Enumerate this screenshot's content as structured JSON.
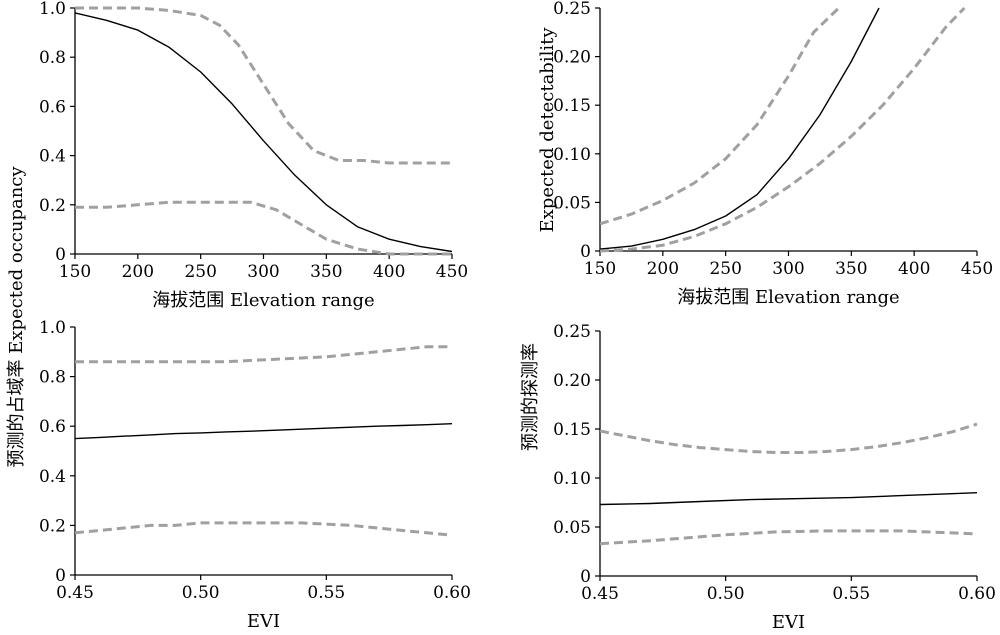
{
  "chart_data": [
    {
      "id": "occ-elev",
      "type": "line",
      "xlabel": "海拔范围 Elevation range",
      "ylabel": "",
      "xlim": [
        150,
        450
      ],
      "ylim": [
        0,
        1.0
      ],
      "xticks": [
        150,
        200,
        250,
        300,
        350,
        400,
        450
      ],
      "yticks": [
        0,
        0.2,
        0.4,
        0.6,
        0.8,
        1.0
      ],
      "xtick_labels": [
        "150",
        "200",
        "250",
        "300",
        "350",
        "400",
        "450"
      ],
      "ytick_labels": [
        "0",
        "0.2",
        "0.4",
        "0.6",
        "0.8",
        "1.0"
      ],
      "grid": false,
      "series": [
        {
          "style": "solid",
          "color": "#000000",
          "x": [
            150,
            175,
            200,
            225,
            250,
            275,
            300,
            325,
            350,
            375,
            400,
            425,
            450
          ],
          "y": [
            0.98,
            0.95,
            0.91,
            0.84,
            0.74,
            0.61,
            0.46,
            0.32,
            0.2,
            0.11,
            0.06,
            0.03,
            0.01
          ]
        },
        {
          "style": "dashed",
          "color": "#a0a0a0",
          "x": [
            150,
            175,
            200,
            225,
            250,
            265,
            280,
            300,
            320,
            340,
            360,
            380,
            400,
            420,
            430,
            450
          ],
          "y": [
            1.0,
            1.0,
            1.0,
            0.99,
            0.97,
            0.93,
            0.85,
            0.69,
            0.53,
            0.42,
            0.38,
            0.38,
            0.37,
            0.37,
            0.37,
            0.37
          ]
        },
        {
          "style": "dashed",
          "color": "#a0a0a0",
          "x": [
            150,
            175,
            200,
            225,
            250,
            275,
            290,
            310,
            330,
            350,
            375,
            400,
            425,
            450
          ],
          "y": [
            0.19,
            0.19,
            0.2,
            0.21,
            0.21,
            0.21,
            0.21,
            0.18,
            0.12,
            0.06,
            0.02,
            0.0,
            0.0,
            0.0
          ]
        }
      ]
    },
    {
      "id": "det-elev",
      "type": "line",
      "xlabel": "海拔范围 Elevation range",
      "ylabel": "Expected detectability",
      "xlim": [
        150,
        450
      ],
      "ylim": [
        0,
        0.25
      ],
      "xticks": [
        150,
        200,
        250,
        300,
        350,
        400,
        450
      ],
      "yticks": [
        0,
        0.05,
        0.1,
        0.15,
        0.2,
        0.25
      ],
      "xtick_labels": [
        "150",
        "200",
        "250",
        "300",
        "350",
        "400",
        "450"
      ],
      "ytick_labels": [
        "0",
        "0.05",
        "0.10",
        "0.15",
        "0.20",
        "0.25"
      ],
      "grid": false,
      "series": [
        {
          "style": "solid",
          "color": "#000000",
          "x": [
            150,
            175,
            200,
            225,
            250,
            275,
            300,
            325,
            350,
            372
          ],
          "y": [
            0.002,
            0.005,
            0.012,
            0.022,
            0.036,
            0.058,
            0.095,
            0.14,
            0.195,
            0.25
          ]
        },
        {
          "style": "dashed",
          "color": "#a0a0a0",
          "x": [
            150,
            175,
            200,
            225,
            250,
            275,
            300,
            320,
            340
          ],
          "y": [
            0.028,
            0.038,
            0.052,
            0.07,
            0.095,
            0.13,
            0.18,
            0.225,
            0.25
          ]
        },
        {
          "style": "dashed",
          "color": "#a0a0a0",
          "x": [
            150,
            175,
            200,
            225,
            250,
            275,
            300,
            325,
            350,
            375,
            400,
            425,
            440
          ],
          "y": [
            0.0,
            0.002,
            0.006,
            0.015,
            0.028,
            0.045,
            0.066,
            0.09,
            0.118,
            0.15,
            0.188,
            0.23,
            0.25
          ]
        }
      ]
    },
    {
      "id": "occ-evi",
      "type": "line",
      "xlabel": "EVI",
      "ylabel": "",
      "xlim": [
        0.45,
        0.6
      ],
      "ylim": [
        0,
        1.0
      ],
      "xticks": [
        0.45,
        0.5,
        0.55,
        0.6
      ],
      "yticks": [
        0,
        0.2,
        0.4,
        0.6,
        0.8,
        1.0
      ],
      "xtick_labels": [
        "0.45",
        "0.50",
        "0.55",
        "0.60"
      ],
      "ytick_labels": [
        "0",
        "0.2",
        "0.4",
        "0.6",
        "0.8",
        "1.0"
      ],
      "grid": false,
      "series": [
        {
          "style": "solid",
          "color": "#000000",
          "x": [
            0.45,
            0.46,
            0.47,
            0.48,
            0.49,
            0.5,
            0.51,
            0.52,
            0.53,
            0.54,
            0.55,
            0.56,
            0.57,
            0.58,
            0.59,
            0.6
          ],
          "y": [
            0.55,
            0.555,
            0.56,
            0.565,
            0.57,
            0.573,
            0.577,
            0.58,
            0.584,
            0.588,
            0.592,
            0.596,
            0.6,
            0.603,
            0.606,
            0.61
          ]
        },
        {
          "style": "dashed",
          "color": "#a0a0a0",
          "x": [
            0.45,
            0.47,
            0.49,
            0.51,
            0.53,
            0.55,
            0.56,
            0.57,
            0.58,
            0.59,
            0.6
          ],
          "y": [
            0.86,
            0.86,
            0.86,
            0.86,
            0.87,
            0.88,
            0.89,
            0.9,
            0.91,
            0.92,
            0.92
          ]
        },
        {
          "style": "dashed",
          "color": "#a0a0a0",
          "x": [
            0.45,
            0.46,
            0.47,
            0.48,
            0.49,
            0.5,
            0.52,
            0.54,
            0.56,
            0.57,
            0.58,
            0.59,
            0.6
          ],
          "y": [
            0.17,
            0.18,
            0.19,
            0.2,
            0.2,
            0.21,
            0.21,
            0.21,
            0.2,
            0.19,
            0.18,
            0.17,
            0.16
          ]
        }
      ]
    },
    {
      "id": "det-evi",
      "type": "line",
      "xlabel": "EVI",
      "ylabel": "预测的探测率",
      "xlim": [
        0.45,
        0.6
      ],
      "ylim": [
        0,
        0.25
      ],
      "xticks": [
        0.45,
        0.5,
        0.55,
        0.6
      ],
      "yticks": [
        0,
        0.05,
        0.1,
        0.15,
        0.2,
        0.25
      ],
      "xtick_labels": [
        "0.45",
        "0.50",
        "0.55",
        "0.60"
      ],
      "ytick_labels": [
        "0",
        "0.05",
        "0.10",
        "0.15",
        "0.20",
        "0.25"
      ],
      "grid": false,
      "series": [
        {
          "style": "solid",
          "color": "#000000",
          "x": [
            0.45,
            0.47,
            0.49,
            0.51,
            0.53,
            0.55,
            0.57,
            0.59,
            0.6
          ],
          "y": [
            0.073,
            0.074,
            0.076,
            0.078,
            0.079,
            0.08,
            0.082,
            0.084,
            0.085
          ]
        },
        {
          "style": "dashed",
          "color": "#a0a0a0",
          "x": [
            0.45,
            0.46,
            0.47,
            0.48,
            0.49,
            0.5,
            0.51,
            0.52,
            0.53,
            0.54,
            0.55,
            0.56,
            0.57,
            0.58,
            0.59,
            0.6
          ],
          "y": [
            0.148,
            0.143,
            0.138,
            0.134,
            0.131,
            0.129,
            0.127,
            0.126,
            0.126,
            0.127,
            0.129,
            0.132,
            0.136,
            0.141,
            0.147,
            0.155
          ]
        },
        {
          "style": "dashed",
          "color": "#a0a0a0",
          "x": [
            0.45,
            0.47,
            0.49,
            0.5,
            0.52,
            0.54,
            0.56,
            0.57,
            0.58,
            0.59,
            0.6
          ],
          "y": [
            0.033,
            0.036,
            0.04,
            0.042,
            0.045,
            0.046,
            0.046,
            0.046,
            0.045,
            0.044,
            0.043
          ]
        }
      ]
    }
  ],
  "left_ylabel": "预测的占域率 Expected occupancy"
}
